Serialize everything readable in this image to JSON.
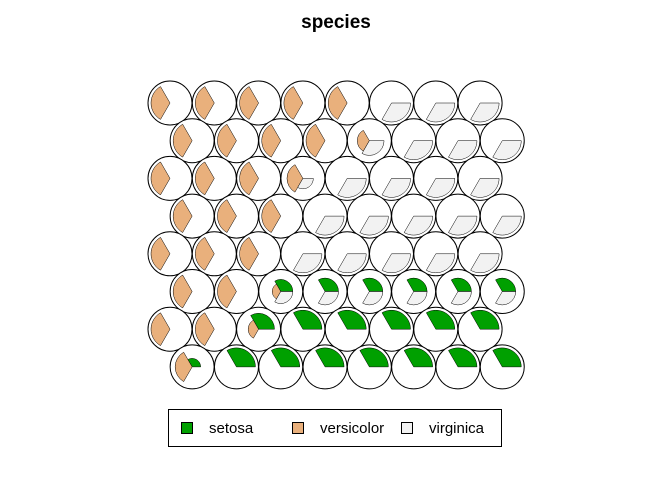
{
  "chart_data": {
    "type": "som-fan",
    "title": "species",
    "grid": {
      "rows": 8,
      "cols": 8,
      "topology": "hexagonal"
    },
    "segments": [
      "setosa",
      "versicolor",
      "virginica"
    ],
    "colors": {
      "setosa": "#00a000",
      "versicolor": "#e9b07c",
      "virginica": "#f2f2f2"
    },
    "legend": {
      "position": "bottom",
      "entries": [
        "setosa",
        "versicolor",
        "virginica"
      ]
    },
    "codes": [
      [
        [
          0,
          1,
          0
        ],
        [
          0,
          1,
          0
        ],
        [
          0,
          1,
          0
        ],
        [
          0,
          1,
          0
        ],
        [
          0,
          1,
          0
        ],
        [
          0,
          0,
          1
        ],
        [
          0,
          0,
          1
        ],
        [
          0,
          0,
          1
        ]
      ],
      [
        [
          0,
          1,
          0
        ],
        [
          0,
          1,
          0
        ],
        [
          0,
          1,
          0
        ],
        [
          0,
          1,
          0
        ],
        [
          0,
          0.4,
          0.6
        ],
        [
          0,
          0,
          1
        ],
        [
          0,
          0,
          1
        ],
        [
          0,
          0,
          1
        ]
      ],
      [
        [
          0,
          1,
          0
        ],
        [
          0,
          1,
          0
        ],
        [
          0,
          1,
          0
        ],
        [
          0,
          0.7,
          0.3
        ],
        [
          0,
          0,
          1
        ],
        [
          0,
          0,
          1
        ],
        [
          0,
          0,
          1
        ],
        [
          0,
          0,
          1
        ]
      ],
      [
        [
          0,
          1,
          0
        ],
        [
          0,
          1,
          0
        ],
        [
          0,
          1,
          0
        ],
        [
          0,
          0,
          1
        ],
        [
          0,
          0,
          1
        ],
        [
          0,
          0,
          1
        ],
        [
          0,
          0,
          1
        ],
        [
          0,
          0,
          1
        ]
      ],
      [
        [
          0,
          1,
          0
        ],
        [
          0,
          1,
          0
        ],
        [
          0,
          1,
          0
        ],
        [
          0,
          0,
          1
        ],
        [
          0,
          0,
          1
        ],
        [
          0,
          0,
          1
        ],
        [
          0,
          0,
          1
        ],
        [
          0,
          0,
          1
        ]
      ],
      [
        [
          0,
          1,
          0
        ],
        [
          0,
          1,
          0
        ],
        [
          0.4,
          0.2,
          0.4
        ],
        [
          0.5,
          0,
          0.5
        ],
        [
          0.5,
          0,
          0.5
        ],
        [
          0.5,
          0,
          0.5
        ],
        [
          0.5,
          0,
          0.5
        ],
        [
          0.5,
          0,
          0.5
        ]
      ],
      [
        [
          0,
          1,
          0
        ],
        [
          0,
          1,
          0
        ],
        [
          0.7,
          0.3,
          0
        ],
        [
          1,
          0,
          0
        ],
        [
          1,
          0,
          0
        ],
        [
          1,
          0,
          0
        ],
        [
          1,
          0,
          0
        ],
        [
          1,
          0,
          0
        ]
      ],
      [
        [
          0.2,
          0.8,
          0
        ],
        [
          1,
          0,
          0
        ],
        [
          1,
          0,
          0
        ],
        [
          1,
          0,
          0
        ],
        [
          1,
          0,
          0
        ],
        [
          1,
          0,
          0
        ],
        [
          1,
          0,
          0
        ],
        [
          1,
          0,
          0
        ]
      ]
    ]
  }
}
